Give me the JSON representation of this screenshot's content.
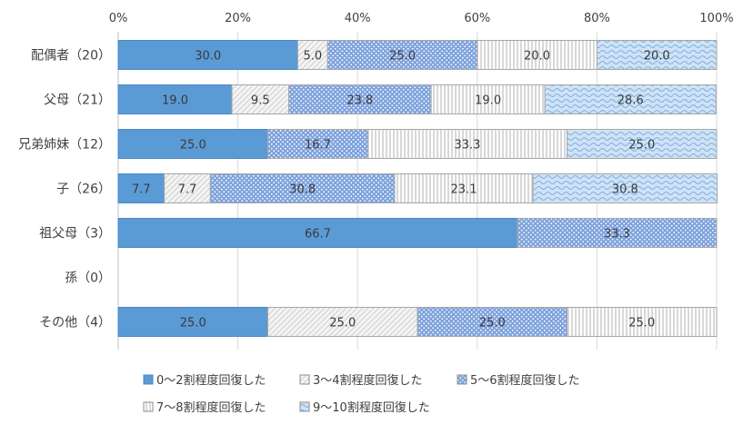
{
  "chart_data": {
    "type": "bar",
    "orientation": "horizontal",
    "stacked": "percent",
    "title": "",
    "xlabel": "",
    "ylabel": "",
    "xlim": [
      0,
      100
    ],
    "x_ticks": [
      "0%",
      "20%",
      "40%",
      "60%",
      "80%",
      "100%"
    ],
    "x_tick_values": [
      0,
      20,
      40,
      60,
      80,
      100
    ],
    "grid": true,
    "legend_position": "bottom",
    "categories": [
      "配偶者（20）",
      "父母（21）",
      "兄弟姉妹（12）",
      "子（26）",
      "祖父母（3）",
      "孫（0）",
      "その他（4）"
    ],
    "series": [
      {
        "name": "0〜2割程度回復した",
        "color": "#5b9bd5",
        "pattern": "solid",
        "values": [
          30.0,
          19.0,
          25.0,
          7.7,
          66.7,
          null,
          25.0
        ]
      },
      {
        "name": "3〜4割程度回復した",
        "color": "#f2f2f2",
        "pattern": "diagonal",
        "values": [
          5.0,
          9.5,
          null,
          7.7,
          null,
          null,
          25.0
        ]
      },
      {
        "name": "5〜6割程度回復した",
        "color": "#8faadc",
        "pattern": "dots",
        "values": [
          25.0,
          23.8,
          16.7,
          30.8,
          33.3,
          null,
          25.0
        ]
      },
      {
        "name": "7〜8割程度回復した",
        "color": "#f7f7f7",
        "pattern": "vertical",
        "values": [
          20.0,
          19.0,
          33.3,
          23.1,
          null,
          null,
          25.0
        ]
      },
      {
        "name": "9〜10割程度回復した",
        "color": "#bdd7ee",
        "pattern": "waves",
        "values": [
          20.0,
          28.6,
          25.0,
          30.8,
          null,
          null,
          null
        ]
      }
    ]
  }
}
